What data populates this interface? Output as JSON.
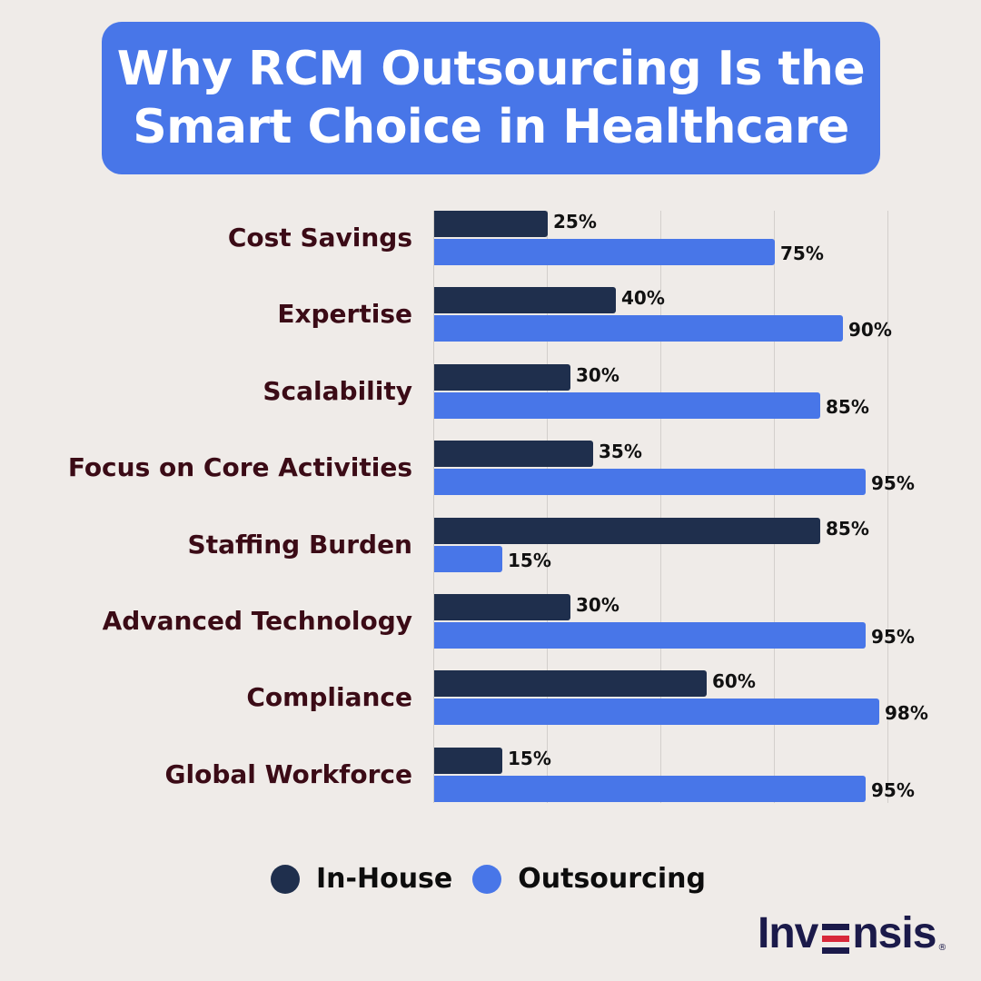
{
  "title": {
    "line1": "Why RCM Outsourcing Is the",
    "line2": "Smart Choice in Healthcare"
  },
  "colors": {
    "background": "#efebe8",
    "title_box": "#4876e8",
    "in_house": "#1f2f4d",
    "outsourcing": "#4876e8",
    "category_label": "#3b0b16",
    "logo_navy": "#1b1a4a",
    "logo_red": "#d8283a"
  },
  "legend": {
    "in_house": "In-House",
    "outsourcing": "Outsourcing"
  },
  "logo": {
    "text_left": "Inv",
    "text_right": "nsis",
    "registered": "®"
  },
  "labels": {
    "c0": {
      "cat": "Cost Savings",
      "ih": "25%",
      "os": "75%"
    },
    "c1": {
      "cat": "Expertise",
      "ih": "40%",
      "os": "90%"
    },
    "c2": {
      "cat": "Scalability",
      "ih": "30%",
      "os": "85%"
    },
    "c3": {
      "cat": "Focus on Core Activities",
      "ih": "35%",
      "os": "95%"
    },
    "c4": {
      "cat": "Staffing Burden",
      "ih": "85%",
      "os": "15%"
    },
    "c5": {
      "cat": "Advanced Technology",
      "ih": "30%",
      "os": "95%"
    },
    "c6": {
      "cat": "Compliance",
      "ih": "60%",
      "os": "98%"
    },
    "c7": {
      "cat": "Global Workforce",
      "ih": "15%",
      "os": "95%"
    }
  },
  "chart_data": {
    "type": "bar",
    "orientation": "horizontal",
    "title": "Why RCM Outsourcing Is the Smart Choice in Healthcare",
    "categories": [
      "Cost Savings",
      "Expertise",
      "Scalability",
      "Focus on Core Activities",
      "Staffing Burden",
      "Advanced Technology",
      "Compliance",
      "Global Workforce"
    ],
    "series": [
      {
        "name": "In-House",
        "color": "#1f2f4d",
        "values": [
          25,
          40,
          30,
          35,
          85,
          30,
          60,
          15
        ]
      },
      {
        "name": "Outsourcing",
        "color": "#4876e8",
        "values": [
          75,
          90,
          85,
          95,
          15,
          95,
          98,
          95
        ]
      }
    ],
    "value_format": "percent",
    "xlabel": "",
    "ylabel": "",
    "xlim": [
      0,
      100
    ],
    "grid": {
      "vertical": true,
      "ticks": [
        0,
        25,
        50,
        75,
        100
      ],
      "tick_labels_shown": false
    },
    "legend_position": "bottom"
  }
}
